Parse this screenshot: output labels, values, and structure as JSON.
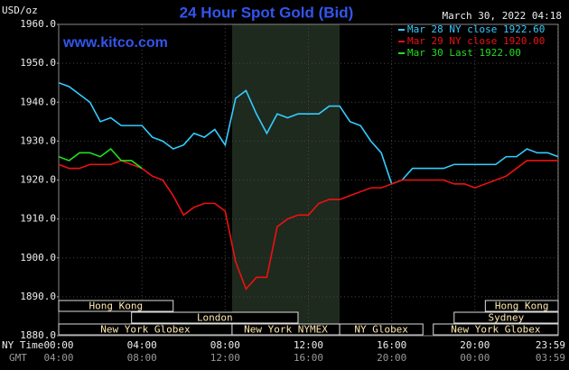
{
  "chart_data": {
    "type": "line",
    "title": "24 Hour Spot Gold (Bid)",
    "subtitle": "www.kitco.com",
    "timestamp": "March 30, 2022 04:18",
    "y_label": "USD/oz",
    "x_label": "NY Time",
    "x2_label": "GMT",
    "xlim": [
      0,
      24
    ],
    "ylim": [
      1880,
      1960
    ],
    "grid": true,
    "yticks": [
      {
        "value": 1880,
        "label": "1880.0"
      },
      {
        "value": 1890,
        "label": "1890.0"
      },
      {
        "value": 1900,
        "label": "1900.0"
      },
      {
        "value": 1910,
        "label": "1910.0"
      },
      {
        "value": 1920,
        "label": "1920.0"
      },
      {
        "value": 1930,
        "label": "1930.0"
      },
      {
        "value": 1940,
        "label": "1940.0"
      },
      {
        "value": 1950,
        "label": "1950.0"
      },
      {
        "value": 1960,
        "label": "1960.0"
      }
    ],
    "xticks": [
      {
        "value": 0,
        "label": "00:00"
      },
      {
        "value": 4,
        "label": "04:00"
      },
      {
        "value": 8,
        "label": "08:00"
      },
      {
        "value": 12,
        "label": "12:00"
      },
      {
        "value": 16,
        "label": "16:00"
      },
      {
        "value": 20,
        "label": "20:00"
      },
      {
        "value": 23.98,
        "label": "23:59"
      }
    ],
    "x2tick_labels": [
      "04:00",
      "08:00",
      "12:00",
      "16:00",
      "20:00",
      "00:00",
      "03:59"
    ],
    "shade": [
      8.33,
      13.5
    ],
    "sessions": [
      [
        {
          "name": "Hong Kong",
          "start": 0,
          "end": 5.5
        },
        {
          "name": "Hong Kong",
          "start": 20.5,
          "end": 24
        }
      ],
      [
        {
          "name": "London",
          "start": 3.5,
          "end": 11.5
        },
        {
          "name": "Sydney",
          "start": 19,
          "end": 24
        }
      ],
      [
        {
          "name": "New York Globex",
          "start": 0,
          "end": 8.33
        },
        {
          "name": "New York NYMEX",
          "start": 8.33,
          "end": 13.5
        },
        {
          "name": "NY Globex",
          "start": 13.5,
          "end": 17.5
        },
        {
          "name": "New York Globex",
          "start": 18,
          "end": 24
        }
      ]
    ],
    "x": [
      0,
      0.5,
      1,
      1.5,
      2,
      2.5,
      3,
      3.5,
      4,
      4.5,
      5,
      5.5,
      6,
      6.5,
      7,
      7.5,
      8,
      8.5,
      9,
      9.5,
      10,
      10.5,
      11,
      11.5,
      12,
      12.5,
      13,
      13.5,
      14,
      14.5,
      15,
      15.5,
      16,
      16.5,
      17,
      17.5,
      18,
      18.5,
      19,
      19.5,
      20,
      20.5,
      21,
      21.5,
      22,
      22.5,
      23,
      23.5,
      24
    ],
    "series": [
      {
        "name": "Mar 28 NY close 1922.60",
        "color": "#33ccff",
        "values": [
          1945,
          1944,
          1942,
          1940,
          1935,
          1936,
          1934,
          1934,
          1934,
          1931,
          1930,
          1928,
          1929,
          1932,
          1931,
          1933,
          1929,
          1941,
          1943,
          1937,
          1932,
          1937,
          1936,
          1937,
          1937,
          1937,
          1939,
          1939,
          1935,
          1934,
          1930,
          1927,
          1919,
          1920,
          1923,
          1923,
          1923,
          1923,
          1924,
          1924,
          1924,
          1924,
          1924,
          1926,
          1926,
          1928,
          1927,
          1927,
          1926
        ]
      },
      {
        "name": "Mar 29 NY close 1920.00",
        "color": "#ee1111",
        "values": [
          1924,
          1923,
          1923,
          1924,
          1924,
          1924,
          1925,
          1924,
          1923,
          1921,
          1920,
          1916,
          1911,
          1913,
          1914,
          1914,
          1912,
          1899,
          1892,
          1895,
          1895,
          1908,
          1910,
          1911,
          1911,
          1914,
          1915,
          1915,
          1916,
          1917,
          1918,
          1918,
          1919,
          1920,
          1920,
          1920,
          1920,
          1920,
          1919,
          1919,
          1918,
          1919,
          1920,
          1921,
          1923,
          1925,
          1925,
          1925,
          1925
        ]
      },
      {
        "name": "Mar 30 Last 1922.00",
        "color": "#22dd22",
        "values": [
          1926,
          1925,
          1927,
          1927,
          1926,
          1928,
          1925,
          1925,
          1923,
          null,
          null,
          null,
          null,
          null,
          null,
          null,
          null,
          null,
          null,
          null,
          null,
          null,
          null,
          null,
          null,
          null,
          null,
          null,
          null,
          null,
          null,
          null,
          null,
          null,
          null,
          null,
          null,
          null,
          null,
          null,
          null,
          null,
          null,
          null,
          null,
          null,
          null,
          null,
          null
        ]
      }
    ]
  }
}
